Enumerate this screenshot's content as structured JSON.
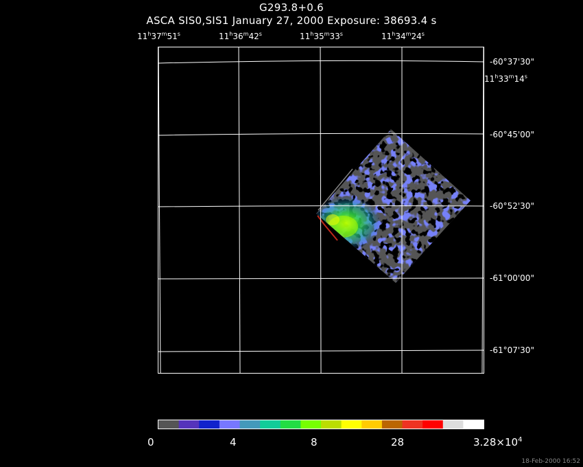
{
  "header": {
    "title": "G293.8+0.6",
    "subtitle": "ASCA SIS0,SIS1 January 27, 2000 Exposure: 38693.4 s"
  },
  "ra_labels": [
    {
      "h": "11",
      "m": "37",
      "s": "51"
    },
    {
      "h": "11",
      "m": "36",
      "s": "42"
    },
    {
      "h": "11",
      "m": "35",
      "s": "33"
    },
    {
      "h": "11",
      "m": "34",
      "s": "24"
    },
    {
      "h": "11",
      "m": "33",
      "s": "14"
    }
  ],
  "dec_labels": [
    "-60°37'30\"",
    "-60°45'00\"",
    "-60°52'30\"",
    "-61°00'00\"",
    "-61°07'30\""
  ],
  "colorbar": {
    "labels": [
      "0",
      "4",
      "8",
      "28",
      "3.28×10"
    ],
    "exponent": "4",
    "colors": [
      "#555555",
      "#5533bb",
      "#1122cc",
      "#7777ff",
      "#4499bb",
      "#11cc99",
      "#22dd44",
      "#77ff00",
      "#bbdd00",
      "#ffff00",
      "#ffcc00",
      "#bb6600",
      "#ee3322",
      "#ff0000",
      "#dddddd",
      "#ffffff"
    ]
  },
  "footer": {
    "timestamp": "18-Feb-2000 16:52"
  }
}
